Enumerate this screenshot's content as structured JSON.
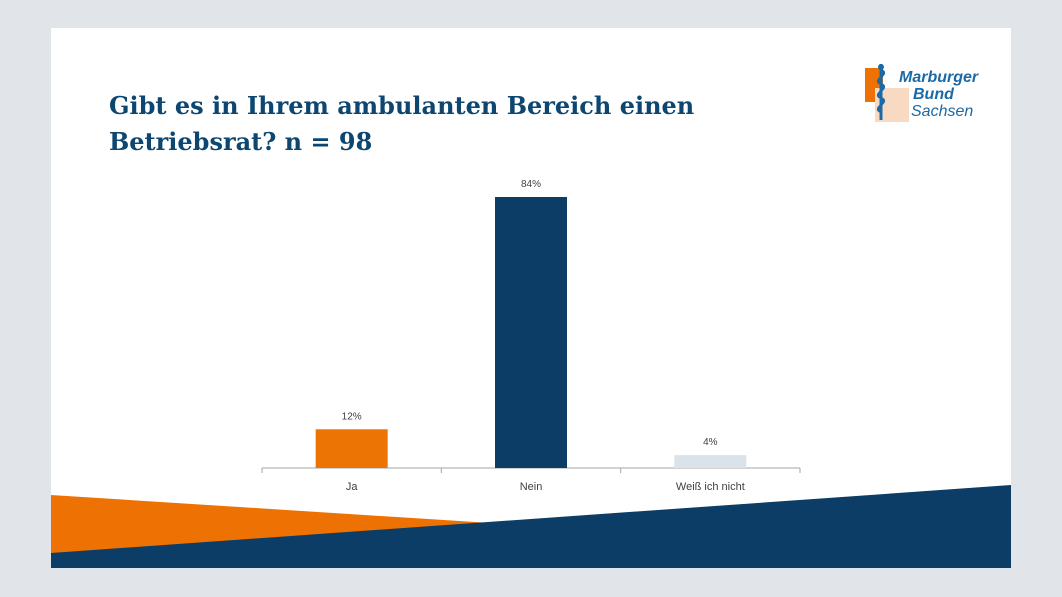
{
  "slide": {
    "title": "Gibt es in Ihrem ambulanten Bereich einen Betriebsrat? n = 98"
  },
  "logo": {
    "line1": "Marburger",
    "line2": "Bund",
    "line3": "Sachsen"
  },
  "colors": {
    "ja": "#ec7404",
    "nein": "#0b3d66",
    "weiss_nicht": "#dbe3ea",
    "title": "#0d4670",
    "band_orange": "#ee7203",
    "band_navy": "#0b3d66"
  },
  "chart_data": {
    "type": "bar",
    "categories": [
      "Ja",
      "Nein",
      "Weiß ich nicht"
    ],
    "values": [
      12,
      84,
      4
    ],
    "data_labels": [
      "12%",
      "84%",
      "4%"
    ],
    "title": "",
    "xlabel": "",
    "ylabel": "",
    "ylim": [
      0,
      90
    ],
    "grid": false,
    "legend": "none"
  }
}
